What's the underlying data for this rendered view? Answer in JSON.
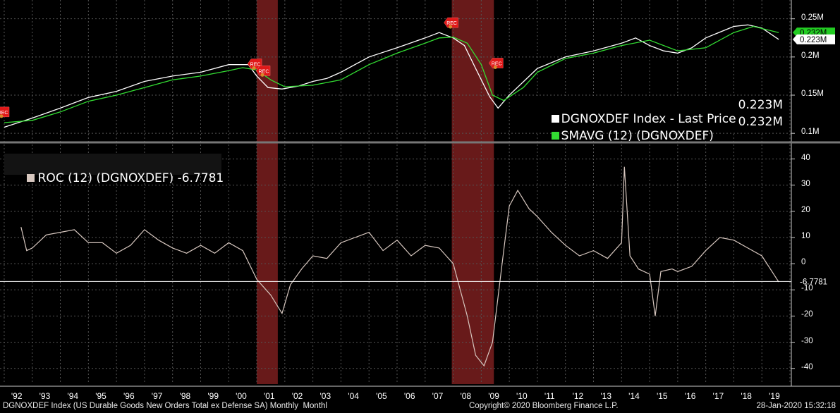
{
  "chart_data": [
    {
      "type": "line",
      "panel": "upper",
      "ylim": [
        0.09,
        0.27
      ],
      "yticks": [
        {
          "v": 0.1,
          "label": "0.1M"
        },
        {
          "v": 0.15,
          "label": "0.15M"
        },
        {
          "v": 0.2,
          "label": "0.2M"
        },
        {
          "v": 0.25,
          "label": "0.25M"
        }
      ],
      "series": [
        {
          "name": "DGNOXDEF Index - Last Price",
          "value_label": "0.223M",
          "color": "#ffffff",
          "x": [
            1992.0,
            1993.0,
            1994.0,
            1995.0,
            1996.0,
            1997.0,
            1998.0,
            1999.0,
            2000.0,
            2000.7,
            2001.0,
            2001.4,
            2001.9,
            2002.5,
            2003.0,
            2003.5,
            2004.0,
            2005.0,
            2006.0,
            2007.0,
            2007.5,
            2008.0,
            2008.4,
            2008.8,
            2009.3,
            2009.6,
            2010.0,
            2011.0,
            2012.0,
            2013.0,
            2014.0,
            2014.5,
            2015.0,
            2015.5,
            2016.0,
            2016.5,
            2017.0,
            2018.0,
            2018.5,
            2019.0,
            2019.6
          ],
          "y": [
            0.108,
            0.12,
            0.133,
            0.147,
            0.155,
            0.168,
            0.175,
            0.18,
            0.19,
            0.19,
            0.175,
            0.16,
            0.158,
            0.162,
            0.168,
            0.172,
            0.18,
            0.2,
            0.212,
            0.225,
            0.232,
            0.225,
            0.215,
            0.185,
            0.148,
            0.133,
            0.15,
            0.185,
            0.2,
            0.208,
            0.218,
            0.225,
            0.215,
            0.208,
            0.205,
            0.212,
            0.225,
            0.24,
            0.242,
            0.238,
            0.223
          ]
        },
        {
          "name": "SMAVG (12) (DGNOXDEF)",
          "value_label": "0.232M",
          "color": "#33dd33",
          "x": [
            1992.0,
            1993.0,
            1994.0,
            1995.0,
            1996.0,
            1997.0,
            1998.0,
            1999.0,
            2000.0,
            2000.5,
            2001.0,
            2001.5,
            2002.0,
            2003.0,
            2004.0,
            2005.0,
            2006.0,
            2007.0,
            2007.5,
            2008.0,
            2008.5,
            2009.0,
            2009.4,
            2009.8,
            2010.5,
            2011.0,
            2012.0,
            2013.0,
            2014.0,
            2015.0,
            2016.0,
            2017.0,
            2018.0,
            2018.7,
            2019.6
          ],
          "y": [
            0.114,
            0.117,
            0.128,
            0.142,
            0.15,
            0.16,
            0.17,
            0.175,
            0.182,
            0.186,
            0.183,
            0.17,
            0.161,
            0.163,
            0.17,
            0.19,
            0.205,
            0.218,
            0.225,
            0.226,
            0.218,
            0.19,
            0.15,
            0.143,
            0.16,
            0.18,
            0.198,
            0.205,
            0.215,
            0.222,
            0.208,
            0.212,
            0.232,
            0.24,
            0.232
          ]
        }
      ],
      "recession_markers": [
        {
          "label": "REC",
          "x": 1991.9,
          "y": 0.128
        },
        {
          "label": "REC",
          "x": 2000.9,
          "y": 0.191
        },
        {
          "label": "REC",
          "x": 2001.2,
          "y": 0.182
        },
        {
          "label": "REC",
          "x": 2007.9,
          "y": 0.245
        },
        {
          "label": "REC",
          "x": 2009.5,
          "y": 0.192
        }
      ]
    },
    {
      "type": "line",
      "panel": "lower",
      "ylim": [
        -46,
        45
      ],
      "yticks": [
        {
          "v": 40,
          "label": "40"
        },
        {
          "v": 30,
          "label": "30"
        },
        {
          "v": 20,
          "label": "20"
        },
        {
          "v": 10,
          "label": "10"
        },
        {
          "v": 0,
          "label": "0"
        },
        {
          "v": -10,
          "label": "-10"
        },
        {
          "v": -20,
          "label": "-20"
        },
        {
          "v": -30,
          "label": "-30"
        },
        {
          "v": -40,
          "label": "-40"
        }
      ],
      "reference_line": -6.7781,
      "series": [
        {
          "name": "ROC (12) (DGNOXDEF)",
          "value_label": "-6.7781",
          "color": "#d8c8c0",
          "x": [
            1992.6,
            1992.8,
            1993.0,
            1993.5,
            1994.0,
            1994.5,
            1995.0,
            1995.5,
            1996.0,
            1996.5,
            1997.0,
            1997.5,
            1998.0,
            1998.5,
            1999.0,
            1999.5,
            2000.0,
            2000.5,
            2001.0,
            2001.5,
            2001.9,
            2002.2,
            2002.6,
            2003.0,
            2003.5,
            2004.0,
            2004.5,
            2005.0,
            2005.5,
            2006.0,
            2006.5,
            2007.0,
            2007.5,
            2008.0,
            2008.5,
            2008.8,
            2009.1,
            2009.4,
            2009.8,
            2010.0,
            2010.3,
            2010.7,
            2011.0,
            2011.5,
            2012.0,
            2012.5,
            2013.0,
            2013.5,
            2014.0,
            2014.1,
            2014.3,
            2014.6,
            2015.0,
            2015.2,
            2015.4,
            2015.8,
            2016.0,
            2016.5,
            2017.0,
            2017.5,
            2018.0,
            2018.5,
            2019.0,
            2019.3,
            2019.6
          ],
          "y": [
            14,
            5,
            6,
            11,
            12,
            13,
            8,
            8,
            4,
            7,
            13,
            9,
            6,
            4,
            7,
            4,
            8,
            5,
            -6,
            -12,
            -19,
            -8,
            -2,
            3,
            2,
            8,
            10,
            12,
            5,
            9,
            3,
            7,
            6,
            0,
            -20,
            -35,
            -39,
            -30,
            5,
            22,
            28,
            21,
            18,
            12,
            7,
            3,
            5,
            2,
            8,
            37,
            3,
            -2,
            -4,
            -20,
            -3,
            -2,
            -3,
            -1,
            5,
            10,
            9,
            6,
            3,
            -2,
            -7
          ]
        }
      ]
    }
  ],
  "xaxis": {
    "start": 1991.85,
    "end": 2020.05,
    "labels": [
      "'92",
      "'93",
      "'94",
      "'95",
      "'96",
      "'97",
      "'98",
      "'99",
      "'00",
      "'01",
      "'02",
      "'03",
      "'04",
      "'05",
      "'06",
      "'07",
      "'08",
      "'09",
      "'10",
      "'11",
      "'12",
      "'13",
      "'14",
      "'15",
      "'16",
      "'17",
      "'18",
      "'19"
    ]
  },
  "recessions": [
    [
      2001.0,
      2001.75
    ],
    [
      2007.95,
      2009.45
    ]
  ],
  "colors": {
    "background": "#000000",
    "grid": "#555555",
    "recession": "#7a1e1e",
    "divider": "#777777"
  },
  "footer": {
    "left": "DGNOXDEF Index (US Durable Goods New Orders Total ex Defense SA) Monthly  Monthl",
    "center": "Copyright© 2020 Bloomberg Finance L.P.",
    "right": "28-Jan-2020 15:32:18"
  }
}
